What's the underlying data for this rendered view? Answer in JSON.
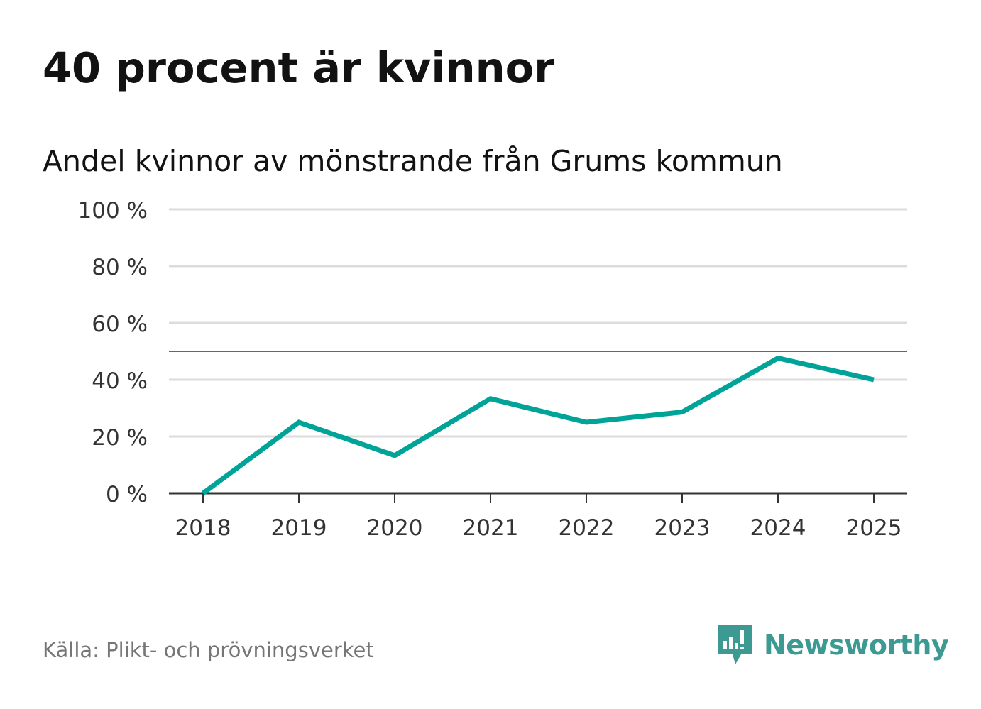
{
  "title": "40 procent är kvinnor",
  "subtitle": "Andel kvinnor av mönstrande från Grums kommun",
  "source": "Källa: Plikt- och prövningsverket",
  "brand": {
    "name": "Newsworthy",
    "icon": "newsworthy-logo-icon",
    "color": "#3d9a93"
  },
  "colors": {
    "line": "#00a398",
    "grid": "#dcdcdc",
    "reference": "#666666",
    "axis": "#333333",
    "text": "#333333"
  },
  "chart_data": {
    "type": "line",
    "title": "Andel kvinnor av mönstrande från Grums kommun",
    "xlabel": "",
    "ylabel": "",
    "categories": [
      "2018",
      "2019",
      "2020",
      "2021",
      "2022",
      "2023",
      "2024",
      "2025"
    ],
    "series": [
      {
        "name": "Andel kvinnor",
        "values": [
          0,
          25,
          13.3,
          33.3,
          25,
          28.6,
          47.6,
          40
        ]
      }
    ],
    "ylim": [
      0,
      100
    ],
    "yticks": [
      {
        "value": 0,
        "label": "0 %"
      },
      {
        "value": 20,
        "label": "20 %"
      },
      {
        "value": 40,
        "label": "40 %"
      },
      {
        "value": 60,
        "label": "60 %"
      },
      {
        "value": 80,
        "label": "80 %"
      },
      {
        "value": 100,
        "label": "100 %"
      }
    ],
    "reference_line": 50,
    "grid": true,
    "legend": "none"
  }
}
